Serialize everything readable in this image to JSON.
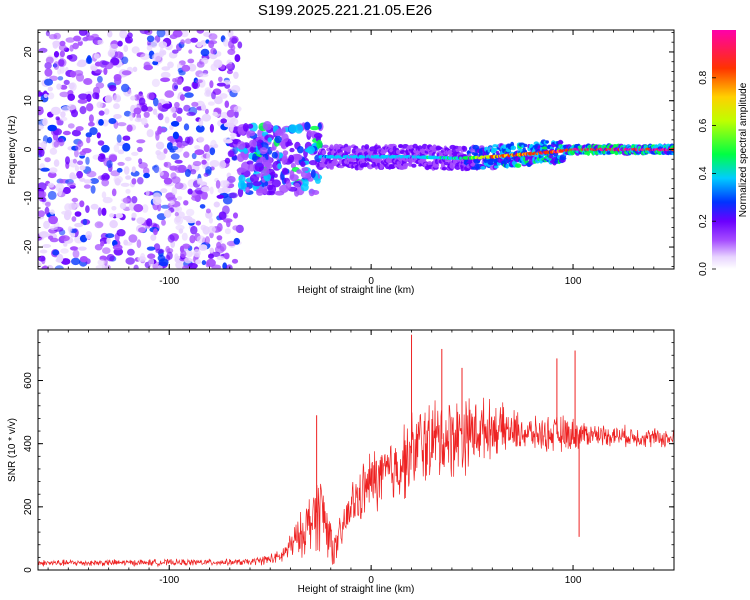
{
  "title": "S199.2025.221.21.05.E26",
  "colors": {
    "snr_line": "#ee2222",
    "axis": "#000000",
    "background": "#ffffff"
  },
  "chart_data": [
    {
      "type": "heatmap",
      "name": "spectrogram",
      "xlabel": "Height of straight line (km)",
      "ylabel": "Frequency (Hz)",
      "xlim": [
        -165,
        150
      ],
      "ylim": [
        -24.5,
        24.5
      ],
      "xticks": [
        -100,
        0,
        100
      ],
      "yticks": [
        -20,
        -10,
        0,
        10,
        20
      ],
      "colorbar": {
        "label": "Normalized spectral amplitude",
        "range": [
          0,
          1
        ],
        "ticks": [
          "0.0",
          "0.2",
          "0.4",
          "0.6",
          "0.8"
        ],
        "tick_values": [
          0,
          0.2,
          0.4,
          0.6,
          0.8
        ]
      },
      "noise_region_x": [
        -165,
        -65
      ],
      "transition_region_x": [
        -65,
        -25
      ],
      "ridge": [
        {
          "x": -25,
          "y": -1.5,
          "amp": 0.3
        },
        {
          "x": -15,
          "y": -1.5,
          "amp": 0.35
        },
        {
          "x": 0,
          "y": -1.5,
          "amp": 0.35
        },
        {
          "x": 20,
          "y": -1.5,
          "amp": 0.35
        },
        {
          "x": 45,
          "y": -1.8,
          "amp": 0.4
        },
        {
          "x": 60,
          "y": -1.5,
          "amp": 0.75
        },
        {
          "x": 75,
          "y": -1.0,
          "amp": 0.8
        },
        {
          "x": 90,
          "y": -0.5,
          "amp": 0.85
        },
        {
          "x": 100,
          "y": 0.0,
          "amp": 0.95
        },
        {
          "x": 150,
          "y": 0.0,
          "amp": 0.95
        }
      ]
    },
    {
      "type": "line",
      "name": "snr",
      "xlabel": "Height of straight line (km)",
      "ylabel": "SNR (10 * v/v)",
      "xlim": [
        -165,
        150
      ],
      "ylim": [
        0,
        760
      ],
      "xticks": [
        -100,
        0,
        100
      ],
      "yticks": [
        0,
        200,
        400,
        600
      ],
      "series": [
        {
          "name": "SNR",
          "color": "#ee2222",
          "envelope": [
            {
              "x": -165,
              "mean": 22,
              "spread": 12
            },
            {
              "x": -60,
              "mean": 25,
              "spread": 12
            },
            {
              "x": -45,
              "mean": 40,
              "spread": 25
            },
            {
              "x": -35,
              "mean": 110,
              "spread": 80
            },
            {
              "x": -25,
              "mean": 200,
              "spread": 160
            },
            {
              "x": -18,
              "mean": 60,
              "spread": 60
            },
            {
              "x": -10,
              "mean": 200,
              "spread": 90
            },
            {
              "x": 0,
              "mean": 280,
              "spread": 120
            },
            {
              "x": 10,
              "mean": 310,
              "spread": 130
            },
            {
              "x": 25,
              "mean": 400,
              "spread": 160
            },
            {
              "x": 45,
              "mean": 430,
              "spread": 150
            },
            {
              "x": 60,
              "mean": 450,
              "spread": 100
            },
            {
              "x": 80,
              "mean": 430,
              "spread": 60
            },
            {
              "x": 95,
              "mean": 430,
              "spread": 70
            },
            {
              "x": 110,
              "mean": 430,
              "spread": 40
            },
            {
              "x": 150,
              "mean": 415,
              "spread": 35
            }
          ],
          "spikes": [
            {
              "x": -27,
              "y": 490
            },
            {
              "x": 20,
              "y": 745
            },
            {
              "x": 35,
              "y": 700
            },
            {
              "x": 45,
              "y": 640
            },
            {
              "x": 92,
              "y": 670
            },
            {
              "x": 101,
              "y": 695
            },
            {
              "x": 103,
              "y": 105
            }
          ]
        }
      ]
    }
  ]
}
